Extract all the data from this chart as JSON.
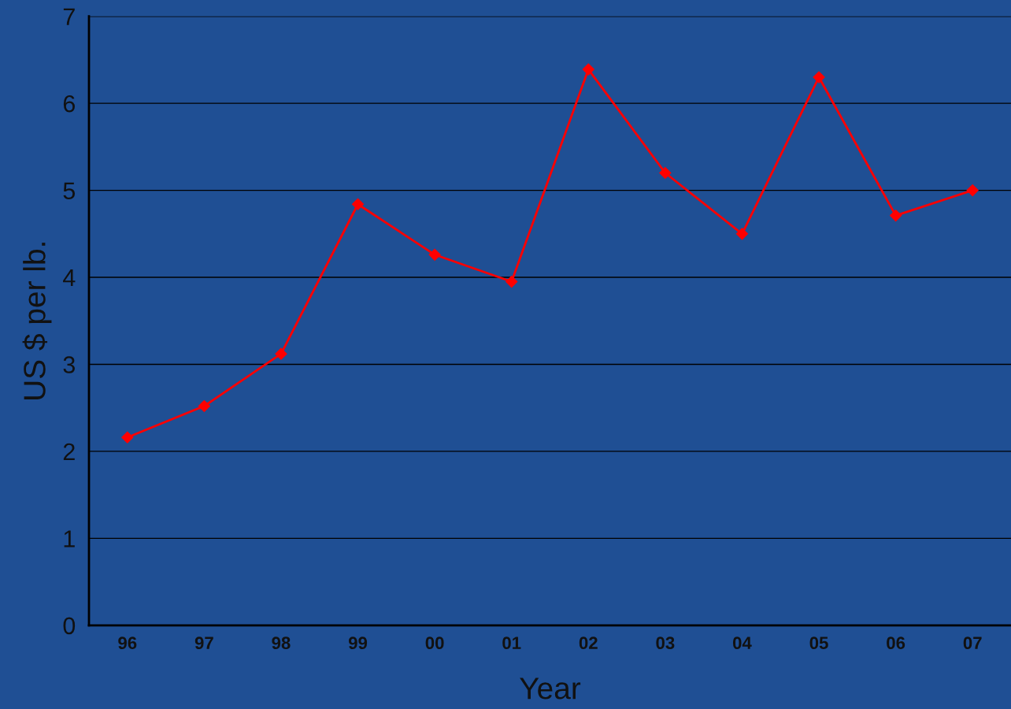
{
  "chart_data": {
    "type": "line",
    "xlabel": "Year",
    "ylabel": "US $ per lb.",
    "categories": [
      "96",
      "97",
      "98",
      "99",
      "00",
      "01",
      "02",
      "03",
      "04",
      "05",
      "06",
      "07"
    ],
    "series": [
      {
        "color": "#ff0000",
        "values": [
          2.16,
          2.52,
          3.12,
          4.84,
          4.26,
          3.95,
          6.39,
          5.2,
          4.5,
          6.3,
          4.71,
          5.0
        ]
      }
    ],
    "ylim": [
      0,
      7
    ],
    "yticks": [
      0,
      1,
      2,
      3,
      4,
      5,
      6,
      7
    ],
    "grid": "y",
    "marker": "diamond",
    "line_style": "solid"
  }
}
